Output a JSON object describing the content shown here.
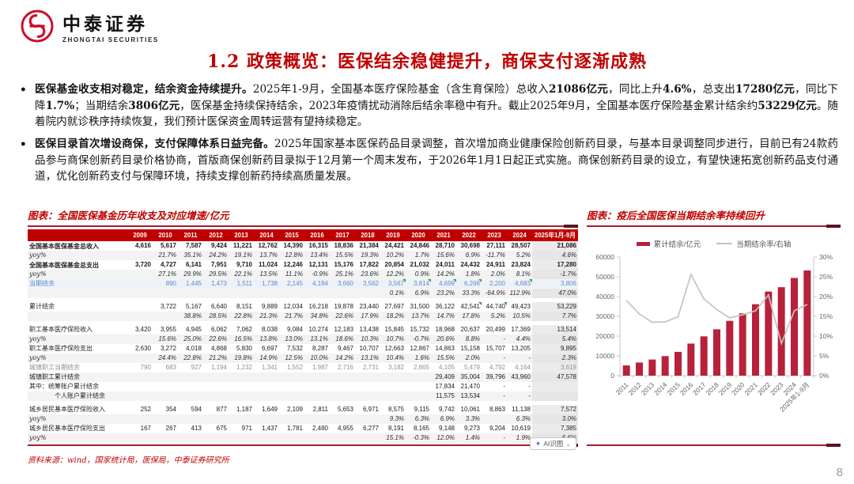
{
  "colors": {
    "accent": "#c00000",
    "bar": "#b8213a",
    "line": "#c3c3c3",
    "logo_red": "#c8102e"
  },
  "brand": {
    "name_cn": "中泰证券",
    "name_en": "ZHONGTAI SECURITIES"
  },
  "page": {
    "title": "1.2 政策概览：医保结余稳健提升，商保支付逐渐成熟",
    "number": "8"
  },
  "bullets": [
    {
      "segments": [
        {
          "t": "医保基金收支相对稳定，结余资金持续提升。",
          "b": true
        },
        {
          "t": "2025年1-9月，全国基本医疗保险基金（含生育保险）总收入",
          "b": false
        },
        {
          "t": "21086亿元",
          "b": true
        },
        {
          "t": "，同比上升",
          "b": false
        },
        {
          "t": "4.6%",
          "b": true
        },
        {
          "t": "，总支出",
          "b": false
        },
        {
          "t": "17280亿元",
          "b": true
        },
        {
          "t": "，同比下降",
          "b": false
        },
        {
          "t": "1.7%",
          "b": true
        },
        {
          "t": "；当期结余",
          "b": false
        },
        {
          "t": "3806亿元",
          "b": true
        },
        {
          "t": "，医保基金持续保持结余，2023年疫情扰动消除后结余率稳中有升。截止2025年9月，全国基本医疗保险基金累计结余约",
          "b": false
        },
        {
          "t": "53229亿元",
          "b": true
        },
        {
          "t": "。随着院内就诊秩序持续恢复，我们预计医保资金周转运营有望持续稳定。",
          "b": false
        }
      ]
    },
    {
      "segments": [
        {
          "t": "医保目录首次增设商保，支付保障体系日益完备。",
          "b": true
        },
        {
          "t": "2025年国家基本医保药品目录调整，首次增加商业健康保险创新药目录，与基本目录调整同步进行，目前已有24款药品参与商保创新药目录价格协商，首版商保创新药目录拟于12月第一个周末发布，于2026年1月1日起正式实施。商保创新药目录的设立，有望快速拓宽创新药品支付通道，优化创新药支付与保障环境，持续支撑创新药持续高质量发展。",
          "b": false
        }
      ]
    }
  ],
  "left_figure": {
    "title": "图表：全国医保基金历年收支及对应增速/亿元",
    "source": "资料来源：wind，国家统计局，医保局，中泰证券研究所",
    "ai_badge": {
      "label": "AI识图",
      "icon": "sparkle-icon",
      "caret": "⌄"
    },
    "table": {
      "years": [
        "2009",
        "2010",
        "2011",
        "2012",
        "2013",
        "2014",
        "2015",
        "2016",
        "2017",
        "2018",
        "2019",
        "2020",
        "2021",
        "2022",
        "2023",
        "2024"
      ],
      "last_col": "2025年1月-9月",
      "rows": [
        {
          "label": "全国基本医保基金总收入",
          "style": "bold",
          "v": [
            "4,616",
            "5,617",
            "7,587",
            "9,424",
            "11,221",
            "12,762",
            "14,390",
            "16,315",
            "18,836",
            "21,384",
            "24,421",
            "24,846",
            "28,710",
            "30,698",
            "27,111",
            "28,507",
            "21,086"
          ]
        },
        {
          "label": "yoy%",
          "style": "yoy",
          "v": [
            "",
            "21.7%",
            "35.1%",
            "24.2%",
            "19.1%",
            "13.7%",
            "12.8%",
            "13.4%",
            "15.5%",
            "19.3%",
            "10.2%",
            "1.7%",
            "15.6%",
            "6.9%",
            "-11.7%",
            "5.2%",
            "4.6%"
          ]
        },
        {
          "label": "全国基本医保基金总支出",
          "style": "bold",
          "v": [
            "3,720",
            "4,727",
            "6,141",
            "7,951",
            "9,710",
            "11,024",
            "12,246",
            "12,131",
            "15,176",
            "17,822",
            "20,854",
            "21,032",
            "24,011",
            "24,432",
            "24,911",
            "23,824",
            "17,280"
          ]
        },
        {
          "label": "yoy%",
          "style": "yoy",
          "v": [
            "",
            "27.1%",
            "29.9%",
            "29.5%",
            "22.1%",
            "13.5%",
            "11.1%",
            "-0.9%",
            "25.1%",
            "23.6%",
            "12.2%",
            "0.9%",
            "14.2%",
            "1.8%",
            "2.0%",
            "8.1%",
            "-1.7%"
          ]
        },
        {
          "label": "当期结余",
          "style": "blue",
          "flags": [
            10,
            11,
            12,
            13,
            15
          ],
          "v": [
            "",
            "890",
            "1,445",
            "1,473",
            "1,511",
            "1,738",
            "2,145",
            "4,184",
            "3,660",
            "3,562",
            "3,567",
            "3,814",
            "4,699",
            "6,266",
            "2,200",
            "4,683",
            "3,806"
          ]
        },
        {
          "label": "",
          "style": "pct",
          "v": [
            "",
            "",
            "",
            "",
            "",
            "",
            "",
            "",
            "",
            "",
            "0.1%",
            "6.9%",
            "23.2%",
            "33.3%",
            "-64.9%",
            "112.9%",
            "47.0%"
          ]
        },
        {
          "label": "累计结余",
          "style": "plain",
          "gap": true,
          "flags": [
            13,
            14
          ],
          "v": [
            "",
            "3,722",
            "5,167",
            "6,640",
            "8,151",
            "9,889",
            "12,034",
            "16,218",
            "19,878",
            "23,440",
            "27,697",
            "31,500",
            "36,122",
            "42,541",
            "44,740",
            "49,423",
            "53,229"
          ]
        },
        {
          "label": "",
          "style": "pct",
          "v": [
            "",
            "",
            "38.8%",
            "28.5%",
            "22.8%",
            "21.3%",
            "21.7%",
            "34.8%",
            "22.6%",
            "17.9%",
            "18.2%",
            "13.7%",
            "14.7%",
            "17.8%",
            "5.2%",
            "10.5%",
            "7.7%"
          ]
        },
        {
          "label": "职工基本医疗保险收入",
          "style": "plain",
          "gap": true,
          "v": [
            "3,420",
            "3,955",
            "4,945",
            "6,062",
            "7,062",
            "8,038",
            "9,084",
            "10,274",
            "12,183",
            "13,438",
            "15,845",
            "15,732",
            "18,968",
            "20,637",
            "20,499",
            "17,369",
            "13,514"
          ]
        },
        {
          "label": "yoy%",
          "style": "yoy",
          "v": [
            "",
            "15.6%",
            "25.0%",
            "22.6%",
            "16.5%",
            "13.8%",
            "13.0%",
            "13.1%",
            "18.6%",
            "10.3%",
            "10.7%",
            "-0.7%",
            "20.6%",
            "8.8%",
            "-",
            "4.4%",
            "5.4%"
          ]
        },
        {
          "label": "职工基本医疗保险支出",
          "style": "plain",
          "v": [
            "2,630",
            "3,272",
            "4,018",
            "4,868",
            "5,830",
            "6,697",
            "7,532",
            "8,287",
            "9,467",
            "10,707",
            "12,663",
            "12,867",
            "14,863",
            "15,158",
            "15,707",
            "13,205",
            "9,895"
          ]
        },
        {
          "label": "yoy%",
          "style": "yoy",
          "v": [
            "",
            "24.4%",
            "22.8%",
            "21.2%",
            "19.8%",
            "14.9%",
            "12.5%",
            "10.0%",
            "14.2%",
            "13.1%",
            "10.4%",
            "1.6%",
            "15.5%",
            "2.0%",
            "-",
            "-",
            "2.3%"
          ]
        },
        {
          "label": "城镇职工当期结余",
          "style": "gray",
          "v": [
            "790",
            "683",
            "927",
            "1,194",
            "1,232",
            "1,341",
            "1,552",
            "1,987",
            "2,716",
            "2,731",
            "3,182",
            "2,865",
            "4,105",
            "5,479",
            "4,792",
            "4,164",
            "3,619"
          ]
        },
        {
          "label": "城镇职工累计结余",
          "style": "plain",
          "v": [
            "",
            "",
            "",
            "",
            "",
            "",
            "",
            "",
            "",
            "",
            "",
            "",
            "29,409",
            "35,004",
            "39,796",
            "43,960",
            "47,578"
          ]
        },
        {
          "label": "其中：统筹账户累计结余",
          "style": "plain",
          "v": [
            "",
            "",
            "",
            "",
            "",
            "",
            "",
            "",
            "",
            "",
            "",
            "",
            "17,834",
            "21,470",
            "-",
            "-",
            ""
          ]
        },
        {
          "label": "个人账户累计结余",
          "style": "indent",
          "v": [
            "",
            "",
            "",
            "",
            "",
            "",
            "",
            "",
            "",
            "",
            "",
            "",
            "11,575",
            "13,534",
            "-",
            "-",
            ""
          ]
        },
        {
          "label": "城乡居民基本医疗保险收入",
          "style": "plain",
          "gap": true,
          "v": [
            "252",
            "354",
            "594",
            "877",
            "1,187",
            "1,649",
            "2,109",
            "2,811",
            "5,653",
            "6,971",
            "8,575",
            "9,115",
            "9,742",
            "10,061",
            "8,863",
            "11,138",
            "7,572"
          ]
        },
        {
          "label": "yoy%",
          "style": "yoy",
          "v": [
            "",
            "",
            "",
            "",
            "",
            "",
            "",
            "",
            "",
            "",
            "9.3%",
            "6.3%",
            "6.9%",
            "3.3%",
            "",
            "6.3%",
            "3.0%"
          ]
        },
        {
          "label": "城乡居民基本医疗保险支出",
          "style": "plain",
          "v": [
            "167",
            "267",
            "413",
            "675",
            "971",
            "1,437",
            "1,781",
            "2,480",
            "4,955",
            "6,277",
            "8,191",
            "8,165",
            "9,148",
            "9,273",
            "9,204",
            "10,619",
            "7,385"
          ]
        },
        {
          "label": "yoy%",
          "style": "yoy",
          "v": [
            "",
            "",
            "",
            "",
            "",
            "",
            "",
            "",
            "",
            "",
            "15.1%",
            "-0.3%",
            "12.0%",
            "1.4%",
            "-",
            "1.9%",
            "-6.6%"
          ]
        }
      ]
    }
  },
  "right_figure": {
    "title": "图表：疫后全国医保当期结余率持续回升"
  },
  "chart_data": {
    "type": "bar+line combo",
    "title": "图表：疫后全国医保当期结余率持续回升",
    "categories": [
      "2011",
      "2012",
      "2013",
      "2014",
      "2015",
      "2016",
      "2017",
      "2018",
      "2019",
      "2020",
      "2021",
      "2022",
      "2023",
      "2024",
      "2025年1-9月"
    ],
    "series": [
      {
        "name": "累计结余/亿元",
        "type": "bar",
        "axis": "left",
        "color": "#b8213a",
        "values": [
          5167,
          6640,
          8151,
          9889,
          12034,
          16218,
          19878,
          23440,
          27697,
          31500,
          36122,
          42541,
          44740,
          49423,
          53229
        ]
      },
      {
        "name": "当期结余率/右轴",
        "type": "line",
        "axis": "right",
        "color": "#c3c3c3",
        "values": [
          19.0,
          15.6,
          13.5,
          13.6,
          14.9,
          25.6,
          19.4,
          16.7,
          14.6,
          15.4,
          16.4,
          20.4,
          8.1,
          16.4,
          18.0
        ]
      }
    ],
    "left_axis": {
      "min": 0,
      "max": 60000,
      "step": 10000,
      "tick_labels": [
        "0",
        "10000",
        "20000",
        "30000",
        "40000",
        "50000",
        "60000"
      ]
    },
    "right_axis": {
      "min": 0,
      "max": 30,
      "step": 5,
      "tick_labels": [
        "0%",
        "5%",
        "10%",
        "15%",
        "20%",
        "25%",
        "30%"
      ]
    },
    "grid": false,
    "legend_position": "top"
  }
}
